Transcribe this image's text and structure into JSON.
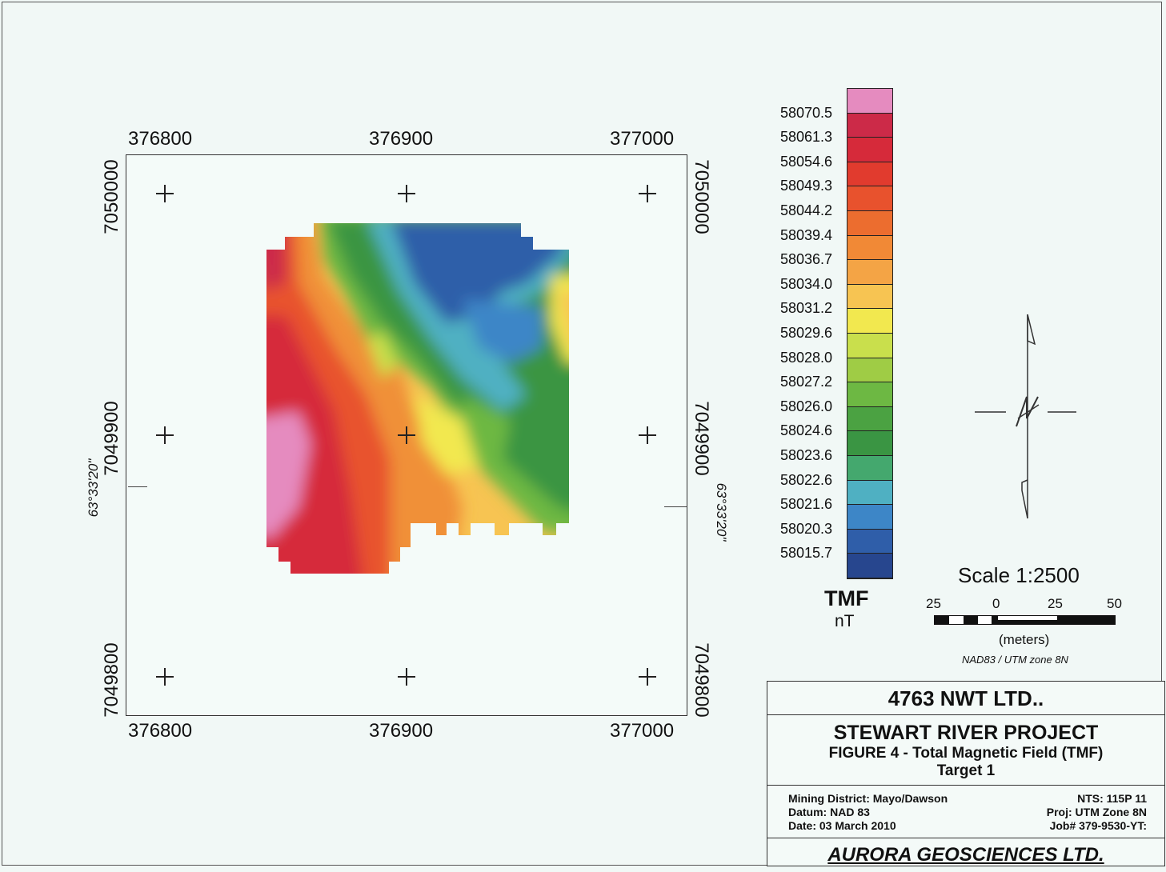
{
  "map": {
    "x_ticks_top": [
      "376800",
      "376900",
      "377000"
    ],
    "x_ticks_bottom": [
      "376800",
      "376900",
      "377000"
    ],
    "y_ticks_left": [
      "7050000",
      "7049900",
      "7049800"
    ],
    "y_ticks_right": [
      "7050000",
      "7049900",
      "7049800"
    ],
    "lat_label_left": "63°33'20\"",
    "lat_label_right": "63°33'20\""
  },
  "legend": {
    "values": [
      "58070.5",
      "58061.3",
      "58054.6",
      "58049.3",
      "58044.2",
      "58039.4",
      "58036.7",
      "58034.0",
      "58031.2",
      "58029.6",
      "58028.0",
      "58027.2",
      "58026.0",
      "58024.6",
      "58023.6",
      "58022.6",
      "58021.6",
      "58020.3",
      "58015.7"
    ],
    "colors": [
      "#e58bbf",
      "#cc2a48",
      "#d62a3a",
      "#e13b2e",
      "#e8522d",
      "#ec6d2f",
      "#f18936",
      "#f4a445",
      "#f7c452",
      "#f2e84f",
      "#c9df4c",
      "#9fcc45",
      "#6db843",
      "#4ba242",
      "#3a9543",
      "#44a86e",
      "#4fb0c2",
      "#3d86c7",
      "#2f5ea9",
      "#27468e"
    ],
    "title": "TMF",
    "unit": "nT"
  },
  "scale": {
    "title": "Scale 1:2500",
    "labels": [
      "25",
      "0",
      "25",
      "50"
    ],
    "units": "(meters)",
    "datum": "NAD83 / UTM zone 8N"
  },
  "title_block": {
    "company": "4763 NWT LTD..",
    "project": "STEWART RIVER PROJECT",
    "figure": "FIGURE 4 - Total Magnetic Field (TMF)",
    "target": "Target 1",
    "info_left": [
      "Mining District: Mayo/Dawson",
      "Datum: NAD 83",
      "Date: 03 March 2010"
    ],
    "info_right": [
      "NTS: 115P 11",
      "Proj: UTM Zone 8N",
      "Job# 379-9530-YT:"
    ],
    "footer": "AURORA GEOSCIENCES LTD."
  }
}
